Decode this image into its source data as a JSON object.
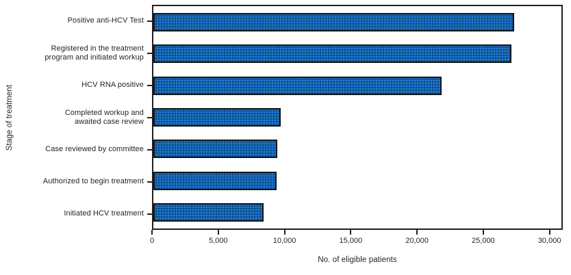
{
  "figure": {
    "background": "#ffffff",
    "text_color": "#231f20",
    "frame_color": "#231f20"
  },
  "chart_data": {
    "type": "bar",
    "orientation": "horizontal",
    "title": "",
    "categories": [
      "Positive anti-HCV Test",
      "Registered in the treatment\nprogram and initiated workup",
      "HCV RNA positive",
      "Completed workup and\nawaited case review",
      "Case reviewed by committee",
      "Authorized to begin treatment",
      "Initiated HCV treatment"
    ],
    "values": [
      27400,
      27200,
      21900,
      9700,
      9400,
      9350,
      8400
    ],
    "xlabel": "No. of eligible patients",
    "ylabel": "Stage of treatment",
    "xlim": [
      0,
      31000
    ],
    "xticks": [
      0,
      5000,
      10000,
      15000,
      20000,
      25000,
      30000
    ],
    "xtick_labels": [
      "0",
      "5,000",
      "10,000",
      "15,000",
      "20,000",
      "25,000",
      "30,000"
    ],
    "grid": "off",
    "legend": "none",
    "bar_color": "#0d62bd",
    "bar_border_color": "#141414"
  }
}
